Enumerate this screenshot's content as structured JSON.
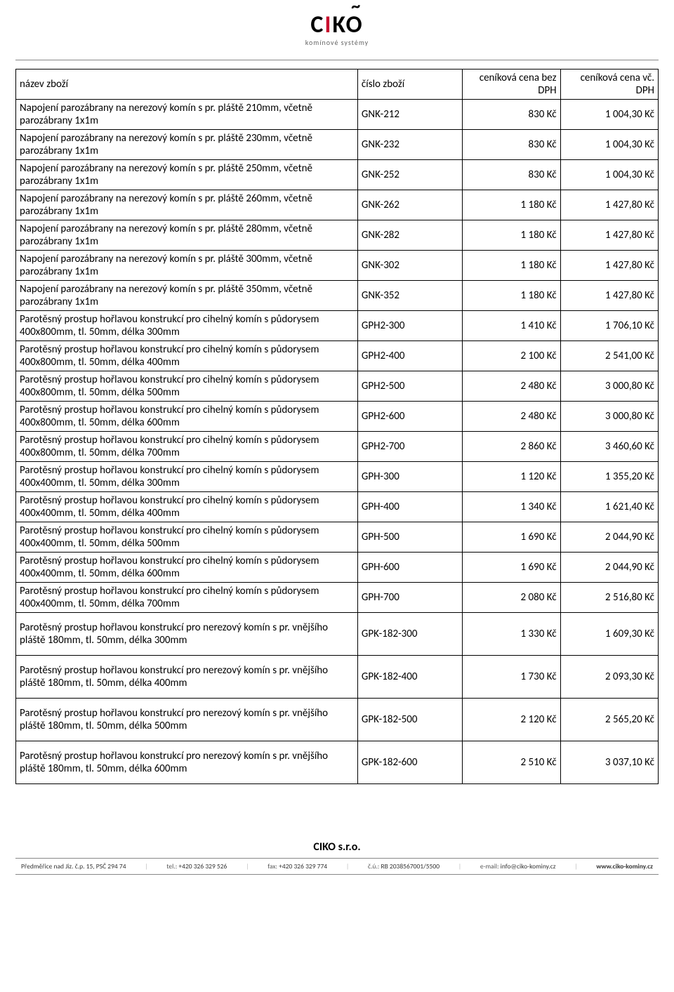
{
  "logo": {
    "main_pre": "C",
    "main_red": "I",
    "main_post": "KO",
    "tilde": "~",
    "subtitle": "komínové systémy"
  },
  "columns": {
    "name": "název zboží",
    "code": "číslo zboží",
    "price_ex": "ceníková cena bez DPH",
    "price_in": "ceníková cena vč. DPH"
  },
  "rows": [
    {
      "tall": false,
      "name": "Napojení parozábrany na nerezový komín s pr. pláště 210mm, včetně parozábrany 1x1m",
      "code": "GNK-212",
      "p1": "830 Kč",
      "p2": "1 004,30 Kč"
    },
    {
      "tall": false,
      "name": "Napojení parozábrany na nerezový komín s pr. pláště 230mm, včetně parozábrany 1x1m",
      "code": "GNK-232",
      "p1": "830 Kč",
      "p2": "1 004,30 Kč"
    },
    {
      "tall": false,
      "name": "Napojení parozábrany na nerezový komín s pr. pláště 250mm, včetně parozábrany 1x1m",
      "code": "GNK-252",
      "p1": "830 Kč",
      "p2": "1 004,30 Kč"
    },
    {
      "tall": false,
      "name": "Napojení parozábrany na nerezový komín s pr. pláště 260mm, včetně parozábrany 1x1m",
      "code": "GNK-262",
      "p1": "1 180 Kč",
      "p2": "1 427,80 Kč"
    },
    {
      "tall": false,
      "name": "Napojení parozábrany na nerezový komín s pr. pláště 280mm, včetně parozábrany 1x1m",
      "code": "GNK-282",
      "p1": "1 180 Kč",
      "p2": "1 427,80 Kč"
    },
    {
      "tall": false,
      "name": "Napojení parozábrany na nerezový komín s pr. pláště 300mm, včetně parozábrany 1x1m",
      "code": "GNK-302",
      "p1": "1 180 Kč",
      "p2": "1 427,80 Kč"
    },
    {
      "tall": false,
      "name": "Napojení parozábrany na nerezový komín s pr. pláště 350mm, včetně parozábrany 1x1m",
      "code": "GNK-352",
      "p1": "1 180 Kč",
      "p2": "1 427,80 Kč"
    },
    {
      "tall": false,
      "name": "Parotěsný prostup hořlavou konstrukcí pro cihelný komín s půdorysem 400x800mm, tl. 50mm, délka 300mm",
      "code": "GPH2-300",
      "p1": "1 410 Kč",
      "p2": "1 706,10 Kč"
    },
    {
      "tall": false,
      "name": "Parotěsný prostup hořlavou konstrukcí pro cihelný komín s půdorysem 400x800mm, tl. 50mm, délka 400mm",
      "code": "GPH2-400",
      "p1": "2 100 Kč",
      "p2": "2 541,00 Kč"
    },
    {
      "tall": false,
      "name": "Parotěsný prostup hořlavou konstrukcí pro cihelný komín s půdorysem 400x800mm, tl. 50mm, délka 500mm",
      "code": "GPH2-500",
      "p1": "2 480 Kč",
      "p2": "3 000,80 Kč"
    },
    {
      "tall": false,
      "name": "Parotěsný prostup hořlavou konstrukcí pro cihelný komín s půdorysem 400x800mm, tl. 50mm, délka 600mm",
      "code": "GPH2-600",
      "p1": "2 480 Kč",
      "p2": "3 000,80 Kč"
    },
    {
      "tall": false,
      "name": "Parotěsný prostup hořlavou konstrukcí pro cihelný komín s půdorysem 400x800mm, tl. 50mm, délka 700mm",
      "code": "GPH2-700",
      "p1": "2 860 Kč",
      "p2": "3 460,60 Kč"
    },
    {
      "tall": false,
      "name": "Parotěsný prostup hořlavou konstrukcí pro cihelný komín s půdorysem 400x400mm, tl. 50mm, délka 300mm",
      "code": "GPH-300",
      "p1": "1 120 Kč",
      "p2": "1 355,20 Kč"
    },
    {
      "tall": false,
      "name": "Parotěsný prostup hořlavou konstrukcí pro cihelný komín s půdorysem 400x400mm, tl. 50mm, délka 400mm",
      "code": "GPH-400",
      "p1": "1 340 Kč",
      "p2": "1 621,40 Kč"
    },
    {
      "tall": false,
      "name": "Parotěsný prostup hořlavou konstrukcí pro cihelný komín s půdorysem 400x400mm, tl. 50mm, délka 500mm",
      "code": "GPH-500",
      "p1": "1 690 Kč",
      "p2": "2 044,90 Kč"
    },
    {
      "tall": false,
      "name": "Parotěsný prostup hořlavou konstrukcí pro cihelný komín s půdorysem 400x400mm, tl. 50mm, délka 600mm",
      "code": "GPH-600",
      "p1": "1 690 Kč",
      "p2": "2 044,90 Kč"
    },
    {
      "tall": false,
      "name": "Parotěsný prostup hořlavou konstrukcí pro cihelný komín s půdorysem 400x400mm, tl. 50mm, délka 700mm",
      "code": "GPH-700",
      "p1": "2 080 Kč",
      "p2": "2 516,80 Kč"
    },
    {
      "tall": true,
      "name": "Parotěsný prostup hořlavou konstrukcí pro nerezový komín s pr. vnějšího pláště 180mm, tl. 50mm, délka 300mm",
      "code": "GPK-182-300",
      "p1": "1 330 Kč",
      "p2": "1 609,30 Kč"
    },
    {
      "tall": true,
      "name": "Parotěsný prostup hořlavou konstrukcí pro nerezový komín s pr. vnějšího pláště 180mm, tl. 50mm, délka 400mm",
      "code": "GPK-182-400",
      "p1": "1 730 Kč",
      "p2": "2 093,30 Kč"
    },
    {
      "tall": true,
      "name": "Parotěsný prostup hořlavou konstrukcí pro nerezový komín s pr. vnějšího pláště 180mm, tl. 50mm, délka 500mm",
      "code": "GPK-182-500",
      "p1": "2 120 Kč",
      "p2": "2 565,20 Kč"
    },
    {
      "tall": true,
      "name": "Parotěsný prostup hořlavou konstrukcí pro nerezový komín s pr. vnějšího pláště 180mm, tl. 50mm, délka 600mm",
      "code": "GPK-182-600",
      "p1": "2 510 Kč",
      "p2": "3 037,10 Kč"
    }
  ],
  "footer": {
    "company": "CIKO s.r.o.",
    "parts": [
      {
        "label": "",
        "value": "Předměřice nad Jiz. č.p. 15, PSČ 294 74"
      },
      {
        "label": "tel.: ",
        "value": "+420 326 329 526"
      },
      {
        "label": "fax: ",
        "value": "+420 326 329 774"
      },
      {
        "label": "č.ú.: ",
        "value": "RB 2038567001/5500"
      },
      {
        "label": "e-mail: ",
        "value": "info@ciko-kominy.cz"
      },
      {
        "label": "",
        "value": "www.ciko-kominy.cz",
        "bold": true
      }
    ]
  }
}
